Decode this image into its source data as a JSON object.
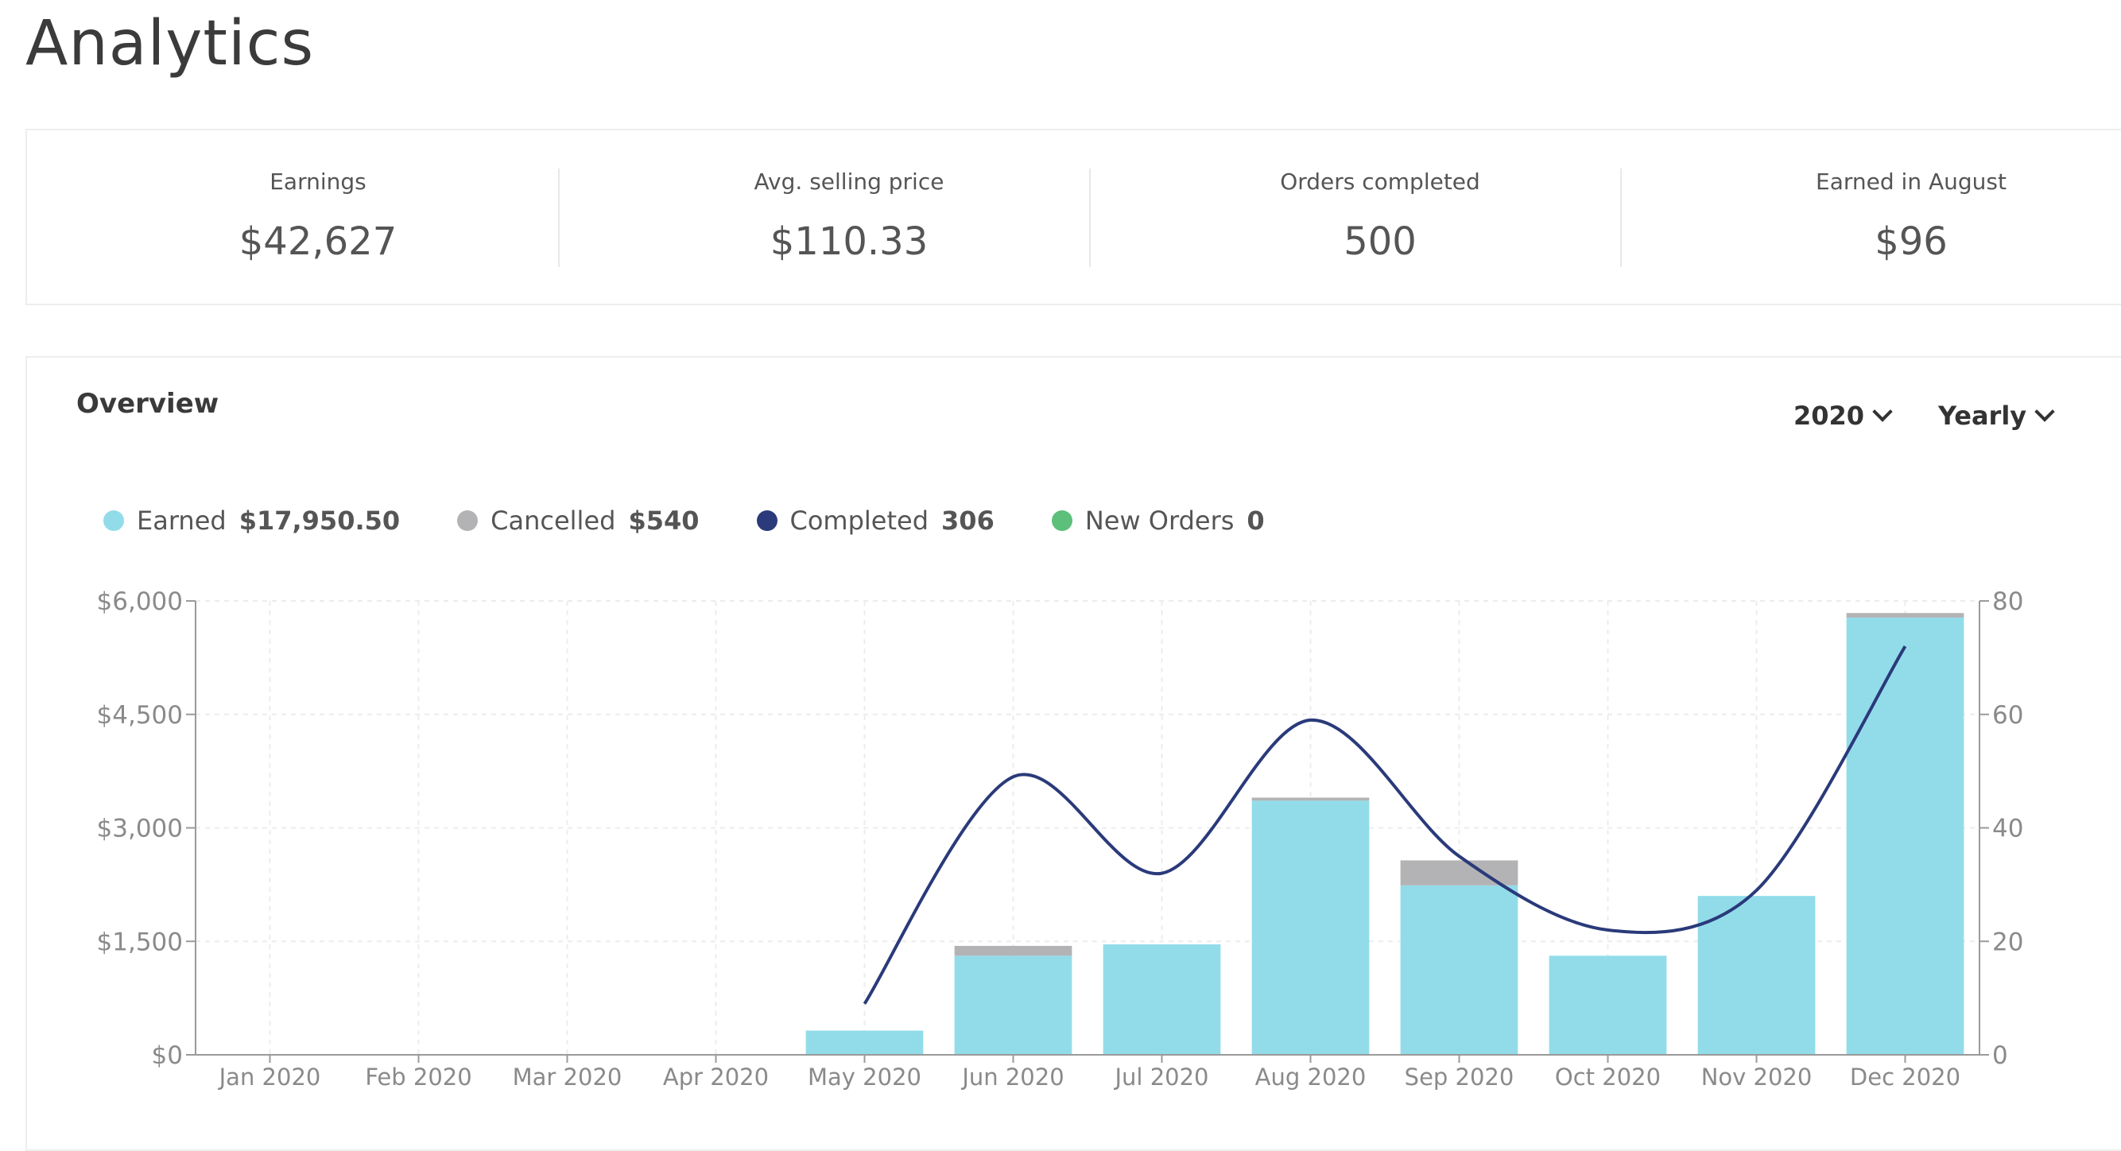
{
  "page": {
    "title": "Analytics"
  },
  "stats": [
    {
      "label": "Earnings",
      "value": "$42,627"
    },
    {
      "label": "Avg. selling price",
      "value": "$110.33"
    },
    {
      "label": "Orders completed",
      "value": "500"
    },
    {
      "label": "Earned in August",
      "value": "$96"
    }
  ],
  "overview": {
    "title": "Overview",
    "year_select": "2020",
    "period_select": "Yearly",
    "legend": [
      {
        "label": "Earned",
        "value": "$17,950.50",
        "color": "#92dcea"
      },
      {
        "label": "Cancelled",
        "value": "$540",
        "color": "#b3b3b5"
      },
      {
        "label": "Completed",
        "value": "306",
        "color": "#2a3a7a"
      },
      {
        "label": "New Orders",
        "value": "0",
        "color": "#5cbf7a"
      }
    ]
  },
  "chart_data": {
    "type": "bar",
    "categories": [
      "Jan 2020",
      "Feb 2020",
      "Mar 2020",
      "Apr 2020",
      "May 2020",
      "Jun 2020",
      "Jul 2020",
      "Aug 2020",
      "Sep 2020",
      "Oct 2020",
      "Nov 2020",
      "Dec 2020"
    ],
    "series": [
      {
        "name": "Earned",
        "kind": "stacked-bar",
        "axis": "left",
        "color": "#92dcea",
        "values": [
          0,
          0,
          0,
          0,
          320,
          1310,
          1460,
          3360,
          2240,
          1310,
          2100,
          5780
        ]
      },
      {
        "name": "Cancelled",
        "kind": "stacked-bar",
        "axis": "left",
        "color": "#b3b3b5",
        "values": [
          0,
          0,
          0,
          0,
          0,
          130,
          0,
          40,
          330,
          0,
          0,
          60
        ]
      },
      {
        "name": "Completed",
        "kind": "smooth-line",
        "axis": "right",
        "color": "#2a3a7a",
        "values": [
          null,
          null,
          null,
          null,
          9,
          49,
          32,
          59,
          35,
          22,
          29,
          72
        ]
      }
    ],
    "y_left": {
      "ticks": [
        "$0",
        "$1,500",
        "$3,000",
        "$4,500",
        "$6,000"
      ],
      "range": [
        0,
        6000
      ]
    },
    "y_right": {
      "ticks": [
        "0",
        "20",
        "40",
        "60",
        "80"
      ],
      "range": [
        0,
        80
      ]
    },
    "grid": true,
    "legend_position": "top-left"
  }
}
